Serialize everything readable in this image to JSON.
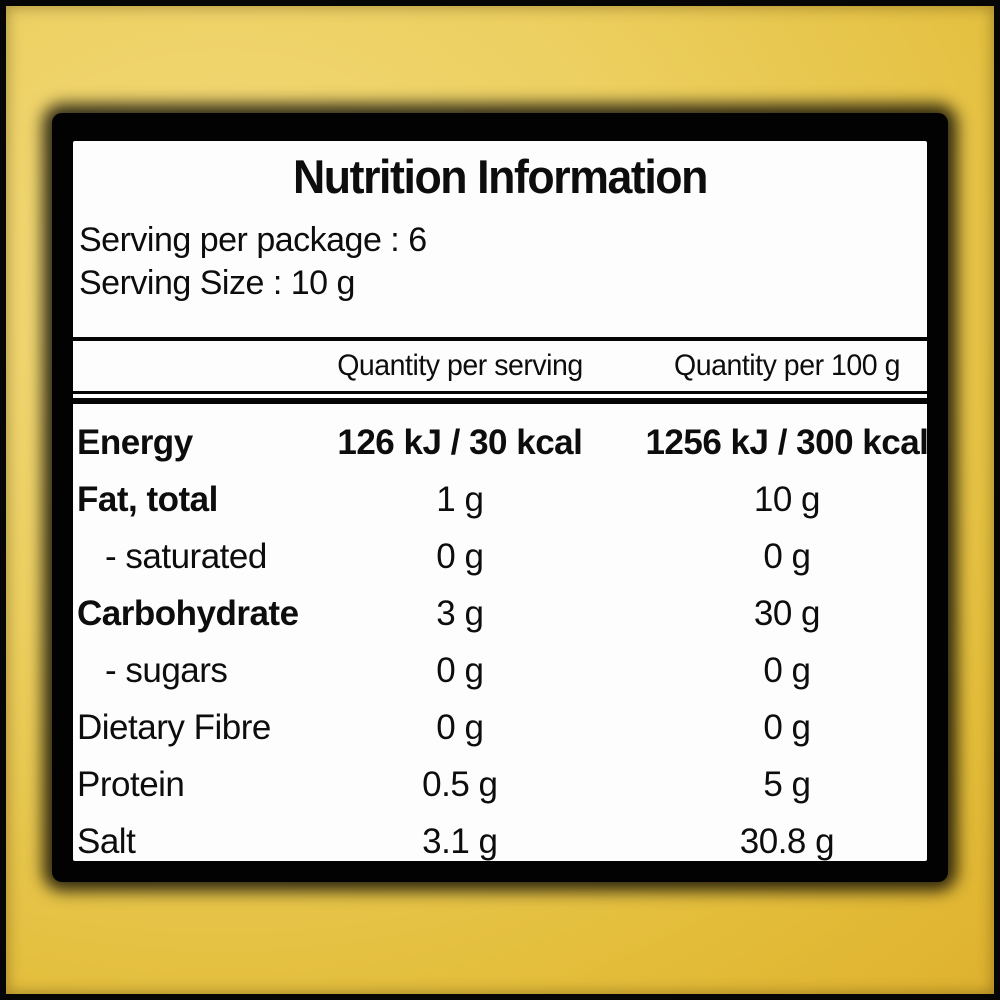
{
  "label": {
    "title": "Nutrition Information",
    "serving_per_package": "Serving per package : 6",
    "serving_size": "Serving Size : 10 g",
    "columns": [
      "Quantity per serving",
      "Quantity per 100 g"
    ],
    "rows": [
      {
        "name": "Energy",
        "per_serving": "126 kJ / 30 kcal",
        "per_100g": "1256 kJ / 300 kcal",
        "bold": true,
        "bold_values": true,
        "indent": false
      },
      {
        "name": "Fat, total",
        "per_serving": "1 g",
        "per_100g": "10 g",
        "bold": true,
        "bold_values": false,
        "indent": false
      },
      {
        "name": "- saturated",
        "per_serving": "0 g",
        "per_100g": "0 g",
        "bold": false,
        "bold_values": false,
        "indent": true
      },
      {
        "name": "Carbohydrate",
        "per_serving": "3 g",
        "per_100g": "30 g",
        "bold": true,
        "bold_values": false,
        "indent": false
      },
      {
        "name": "- sugars",
        "per_serving": "0 g",
        "per_100g": "0 g",
        "bold": false,
        "bold_values": false,
        "indent": true
      },
      {
        "name": "Dietary Fibre",
        "per_serving": "0 g",
        "per_100g": "0 g",
        "bold": false,
        "bold_values": false,
        "indent": false
      },
      {
        "name": "Protein",
        "per_serving": "0.5 g",
        "per_100g": "5 g",
        "bold": false,
        "bold_values": false,
        "indent": false
      },
      {
        "name": "Salt",
        "per_serving": "3.1 g",
        "per_100g": "30.8 g",
        "bold": false,
        "bold_values": false,
        "indent": false
      }
    ],
    "colors": {
      "background_light": "#f3da7d",
      "background_dark": "#dcab28",
      "frame": "#020202",
      "panel": "#fdfdfd",
      "text": "#0d0d0d"
    }
  }
}
